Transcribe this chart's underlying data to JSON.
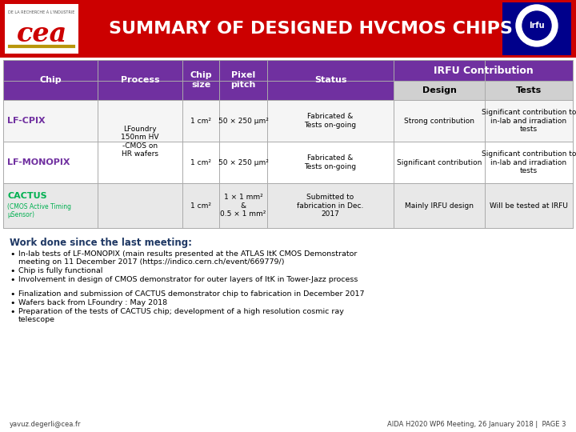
{
  "title": "SUMMARY OF DESIGNED HVCMOS CHIPS",
  "title_color": "#ffffff",
  "header_bg": "#cc0000",
  "table_header_bg": "#7030a0",
  "table_header_fg": "#ffffff",
  "subheader_bg": "#d9d9d9",
  "subheader_fg": "#000000",
  "row_bg_odd": "#f5f5f5",
  "row_bg_even": "#ffffff",
  "row_bg_cactus": "#e8e8e8",
  "chip_name_color": "#7030a0",
  "cactus_color": "#00b050",
  "link_color": "#0070c0",
  "work_title_color": "#1f3864",
  "work_title": "Work done since the last meeting:",
  "rows": [
    {
      "chip": "LF-CPIX",
      "chip_sub": "",
      "process": "LFoundry\n150nm HV\n-CMOS on\nHR wafers",
      "size": "1 cm²",
      "pitch": "50 × 250 μm²",
      "status": "Fabricated &\nTests on-going",
      "design": "Strong contribution",
      "tests": "Significant contribution to\nin-lab and irradiation\ntests"
    },
    {
      "chip": "LF-MONOPIX",
      "chip_sub": "",
      "process": "",
      "size": "1 cm²",
      "pitch": "50 × 250 μm²",
      "status": "Fabricated &\nTests on-going",
      "design": "Significant contribution",
      "tests": "Significant contribution to\nin-lab and irradiation\ntests"
    },
    {
      "chip": "CACTUS",
      "chip_sub": "(CMOS Active Timing\nμSensor)",
      "process": "",
      "size": "1 cm²",
      "pitch": "1 × 1 mm²\n&\n0.5 × 1 mm²",
      "status": "Submitted to\nfabrication in Dec.\n2017",
      "design": "Mainly IRFU design",
      "tests": "Will be tested at IRFU"
    }
  ],
  "bullets_group1": [
    "In-lab tests of LF-MONOPIX (main results presented at the ATLAS ItK CMOS Demonstrator\nmeeting on 11 December 2017 (https://indico.cern.ch/event/669779/)",
    "Chip is fully functional",
    "Involvement in design of CMOS demonstrator for outer layers of ItK in Tower-Jazz process"
  ],
  "bullets_group2": [
    "Finalization and submission of CACTUS demonstrator chip to fabrication in December 2017",
    "Wafers back from LFoundry : May 2018",
    "Preparation of the tests of CACTUS chip; development of a high resolution cosmic ray\ntelescope"
  ],
  "footer_left": "yavuz.degerli@cea.fr",
  "footer_right": "AIDA H2020 WP6 Meeting, 26 January 2018 |  PAGE 3"
}
